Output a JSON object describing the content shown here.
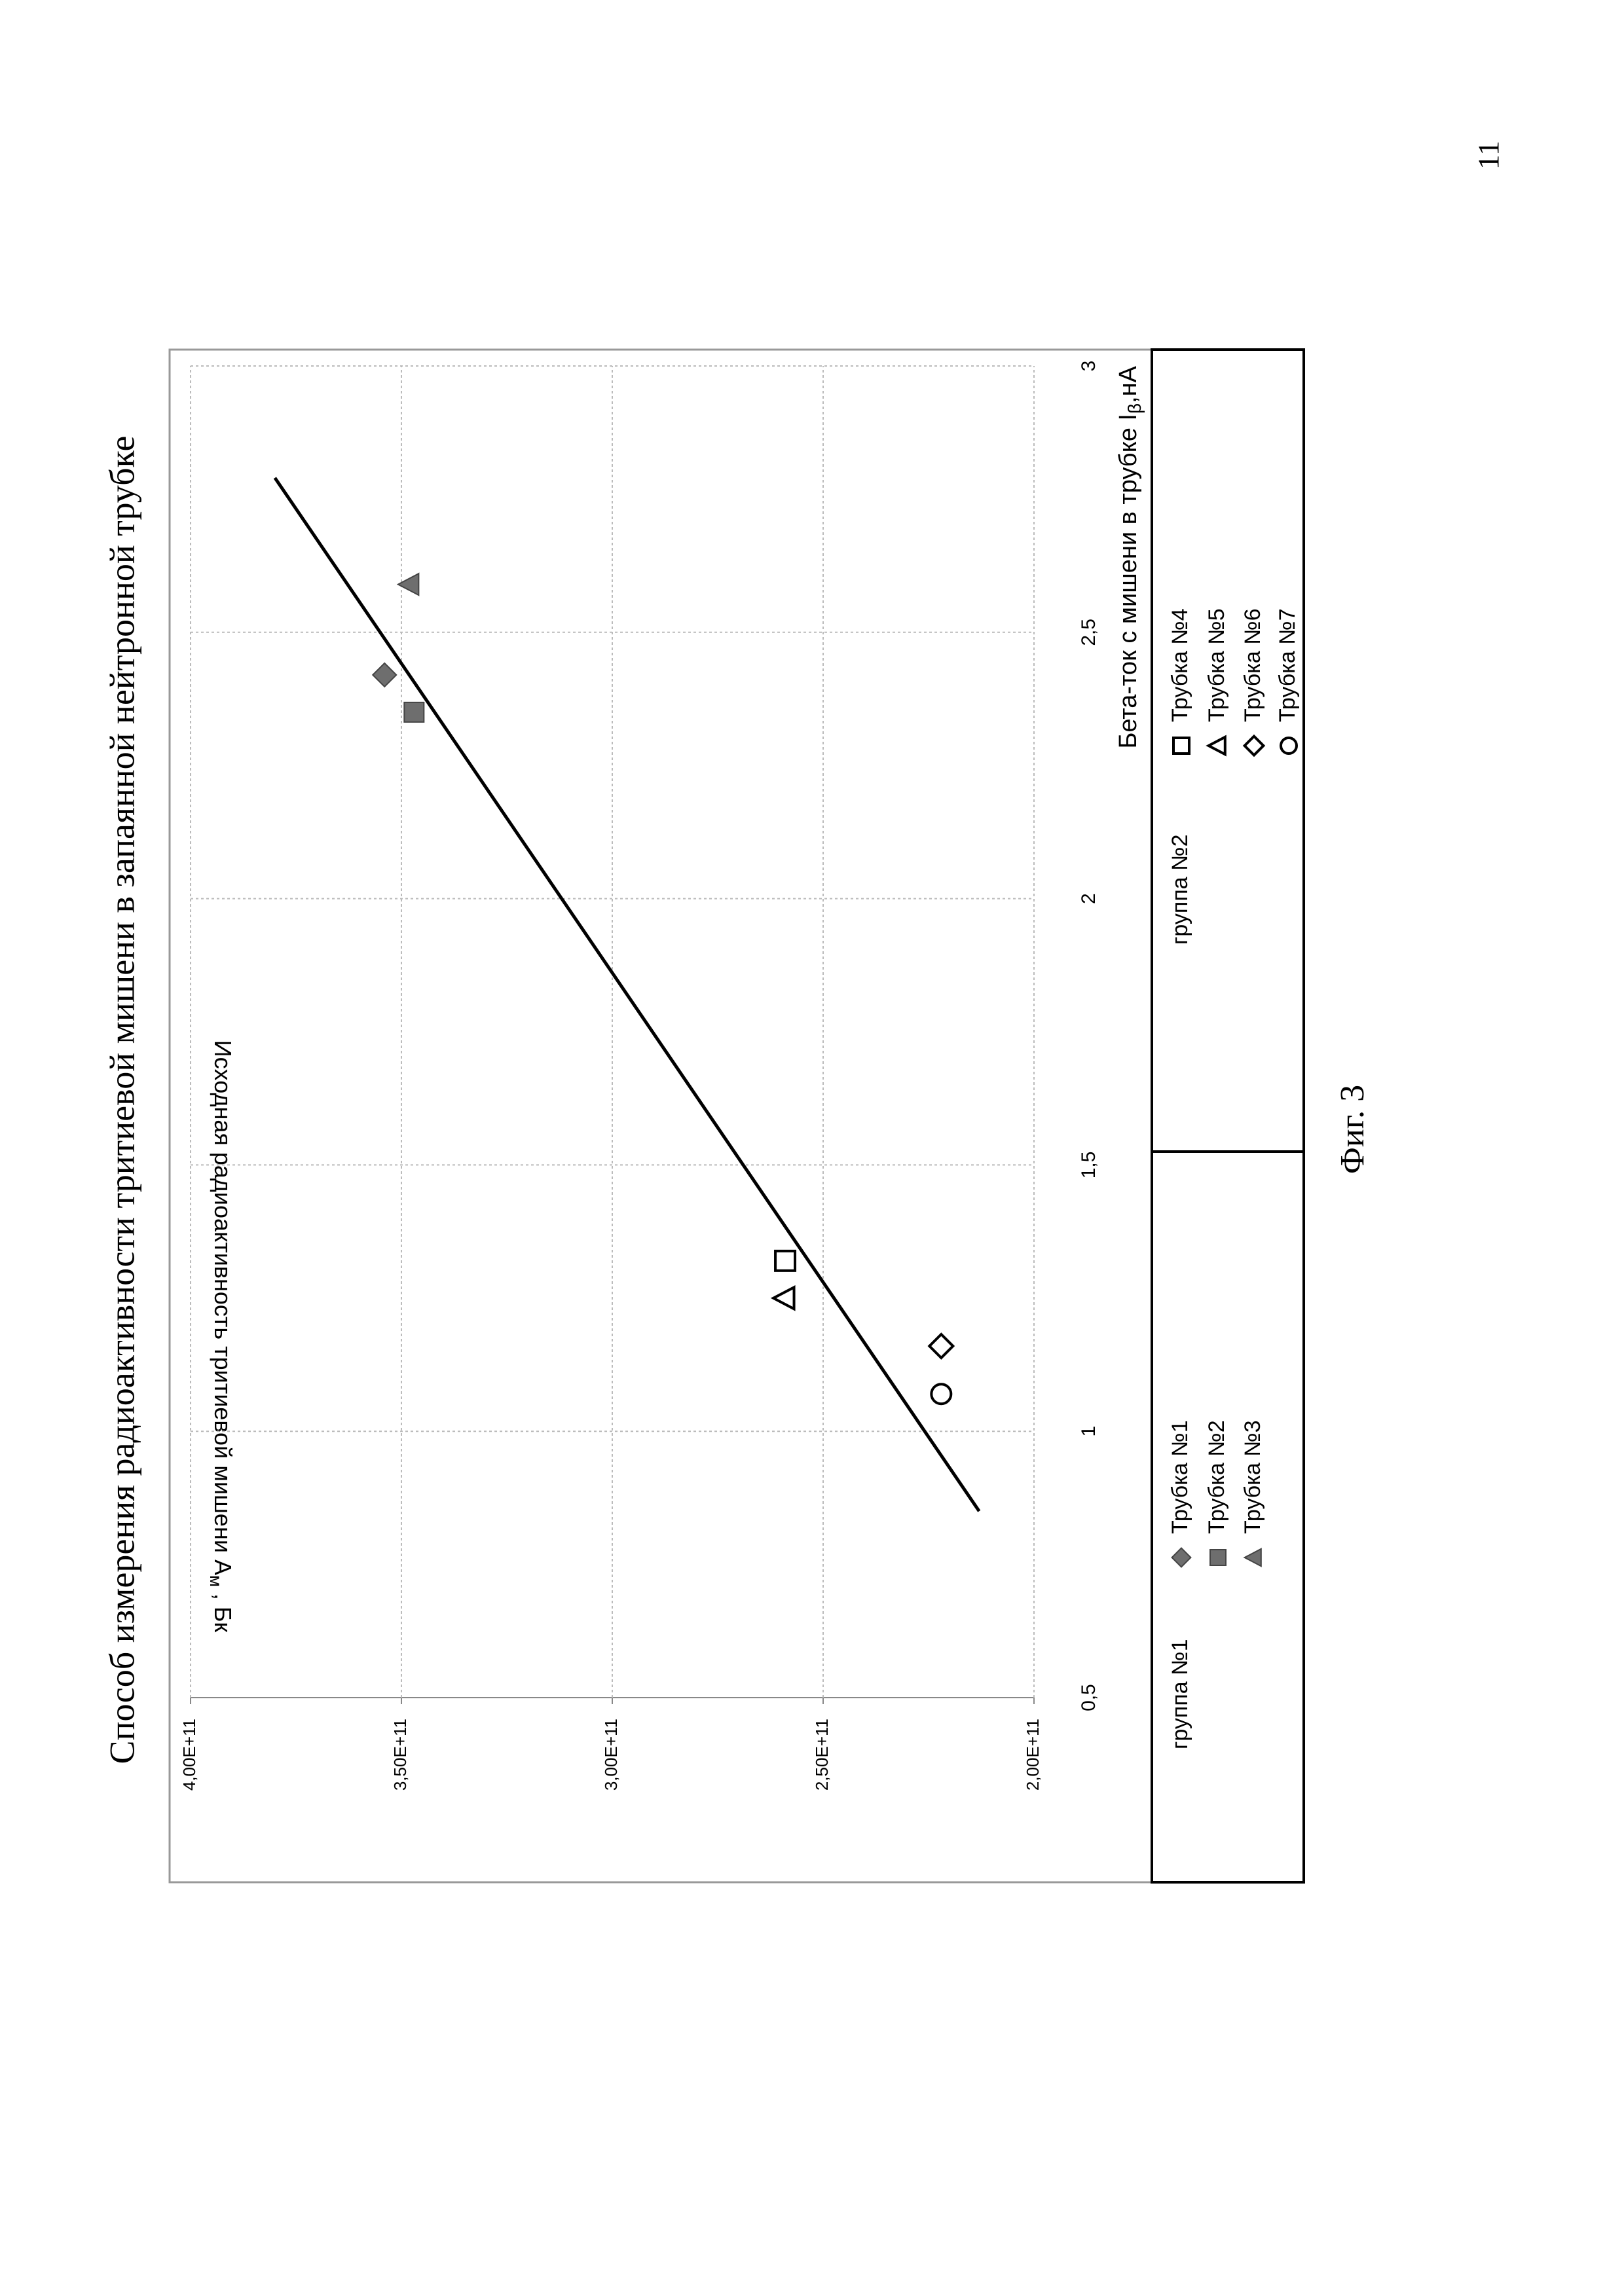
{
  "page_number": "11",
  "figure_caption": "Фиг. 3",
  "chart_data": {
    "type": "scatter",
    "title": "Способ измерения радиоактивности тритиевой мишени в запаянной нейтронной трубке",
    "x_label": {
      "text": "Бета-ток  с мишени в трубке I",
      "sub": "β",
      "rest": ",нА"
    },
    "y_label": {
      "text": "Исходная радиоактивность тритиевой мишени A",
      "sub": "м",
      "rest": " , Бк"
    },
    "xlim": [
      0.5,
      3
    ],
    "xticks": [
      {
        "value": 0.5,
        "label": "0,5"
      },
      1,
      {
        "value": 1.5,
        "label": "1,5"
      },
      2,
      {
        "value": 2.5,
        "label": "2,5"
      },
      3
    ],
    "ylim": [
      200000000000,
      400000000000
    ],
    "yticks": [
      {
        "value": 200000000000,
        "label": "2,00E+11"
      },
      {
        "value": 250000000000,
        "label": "2,50E+11"
      },
      {
        "value": 300000000000,
        "label": "3,00E+11"
      },
      {
        "value": 350000000000,
        "label": "3,50E+11"
      },
      {
        "value": 400000000000,
        "label": "4,00E+11"
      }
    ],
    "grid": true,
    "trendline": {
      "x": [
        0.85,
        2.79
      ],
      "y": [
        213000000000,
        380000000000
      ],
      "color": "#000000"
    },
    "groups": [
      {
        "name": "группа №1",
        "series": [
          {
            "name": "Трубка №1",
            "marker": "diamond",
            "filled": true,
            "color": "#6e6e6e",
            "x": [
              2.42
            ],
            "y": [
              354000000000
            ]
          },
          {
            "name": "Трубка №2",
            "marker": "square",
            "filled": true,
            "color": "#6e6e6e",
            "x": [
              2.35
            ],
            "y": [
              347000000000
            ]
          },
          {
            "name": "Трубка №3",
            "marker": "triangle",
            "filled": true,
            "color": "#6e6e6e",
            "x": [
              2.59
            ],
            "y": [
              348000000000
            ]
          }
        ]
      },
      {
        "name": "группа №2",
        "series": [
          {
            "name": "Трубка №4",
            "marker": "square",
            "filled": false,
            "color": "#000000",
            "x": [
              1.32
            ],
            "y": [
              259000000000
            ]
          },
          {
            "name": "Трубка №5",
            "marker": "triangle",
            "filled": false,
            "color": "#000000",
            "x": [
              1.25
            ],
            "y": [
              259000000000
            ]
          },
          {
            "name": "Трубка №6",
            "marker": "diamond",
            "filled": false,
            "color": "#000000",
            "x": [
              1.16
            ],
            "y": [
              222000000000
            ]
          },
          {
            "name": "Трубка №7",
            "marker": "circle",
            "filled": false,
            "color": "#000000",
            "x": [
              1.07
            ],
            "y": [
              222000000000
            ]
          }
        ]
      }
    ]
  }
}
